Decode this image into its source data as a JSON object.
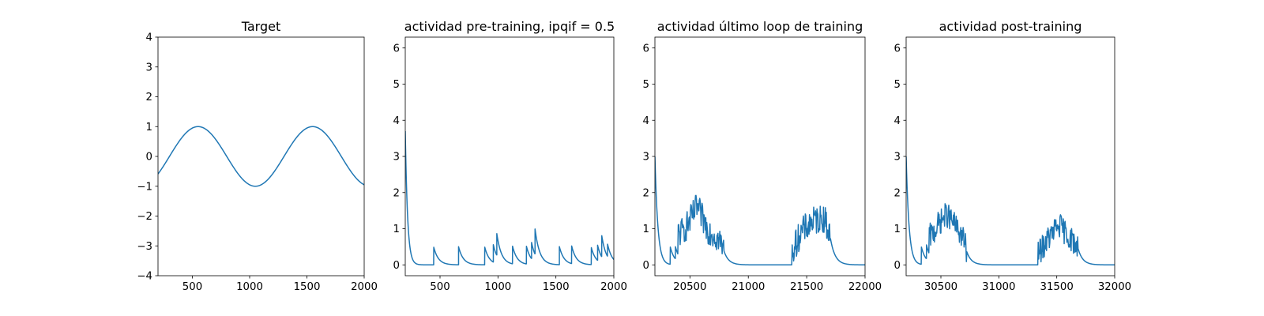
{
  "chart_data": [
    {
      "type": "line",
      "title": "Target",
      "xlabel": "",
      "ylabel": "",
      "xlim": [
        200,
        2000
      ],
      "ylim": [
        -4,
        4
      ],
      "xticks": [
        500,
        1000,
        1500,
        2000
      ],
      "yticks": [
        -4,
        -3,
        -2,
        -1,
        0,
        1,
        2,
        3,
        4
      ],
      "grid": false,
      "color": "#1f77b4",
      "signal": {
        "kind": "sine",
        "amplitude": 1,
        "period": 1000,
        "peak_x": 550
      },
      "series": [
        {
          "x": [
            200,
            300,
            400,
            550,
            700,
            800,
            900,
            1050,
            1200,
            1300,
            1400,
            1550,
            1700,
            1800,
            1900,
            2000
          ],
          "y": [
            -0.59,
            -0.31,
            0.31,
            1.0,
            0.59,
            0.0,
            -0.59,
            -1.0,
            -0.59,
            0.0,
            0.59,
            1.0,
            0.59,
            0.0,
            -0.59,
            -0.95
          ]
        }
      ]
    },
    {
      "type": "line",
      "title": "actividad pre-training, ipqif = 0.5",
      "xlabel": "",
      "ylabel": "",
      "xlim": [
        200,
        2000
      ],
      "ylim": [
        -0.3,
        6.3
      ],
      "xticks": [
        500,
        1000,
        1500,
        2000
      ],
      "yticks": [
        0,
        1,
        2,
        3,
        4,
        5,
        6
      ],
      "grid": false,
      "color": "#1f77b4",
      "signal": {
        "kind": "spikes",
        "start_value": 3.7,
        "start_decay": 20,
        "decay": 40,
        "spikes": [
          [
            445,
            0.5
          ],
          [
            660,
            0.5
          ],
          [
            885,
            0.5
          ],
          [
            960,
            0.48
          ],
          [
            990,
            0.6
          ],
          [
            1125,
            0.5
          ],
          [
            1245,
            0.5
          ],
          [
            1290,
            0.45
          ],
          [
            1320,
            0.7
          ],
          [
            1530,
            0.5
          ],
          [
            1635,
            0.5
          ],
          [
            1805,
            0.48
          ],
          [
            1860,
            0.42
          ],
          [
            1895,
            0.6
          ],
          [
            1945,
            0.35
          ]
        ]
      }
    },
    {
      "type": "line",
      "title": "actividad último loop de training",
      "xlabel": "",
      "ylabel": "",
      "xlim": [
        20200,
        22000
      ],
      "ylim": [
        -0.3,
        6.3
      ],
      "xticks": [
        20500,
        21000,
        21500,
        22000
      ],
      "yticks": [
        0,
        1,
        2,
        3,
        4,
        5,
        6
      ],
      "grid": false,
      "color": "#1f77b4",
      "signal": {
        "kind": "bursts",
        "start_value": 3.0,
        "start_decay": 25,
        "decay": 40,
        "spikes": [
          [
            20330,
            0.5
          ],
          [
            20375,
            0.35
          ]
        ],
        "bursts": [
          {
            "x": [
              20400,
              20500,
              20560,
              20650,
              20750,
              20790
            ],
            "y": [
              0.6,
              1.2,
              1.6,
              1.0,
              0.7,
              0.4
            ],
            "noise": 0.4
          },
          {
            "x": [
              21370,
              21450,
              21550,
              21650,
              21700
            ],
            "y": [
              0.3,
              0.9,
              1.2,
              1.3,
              0.8
            ],
            "noise": 0.4
          }
        ]
      }
    },
    {
      "type": "line",
      "title": "actividad post-training",
      "xlabel": "",
      "ylabel": "",
      "xlim": [
        30200,
        32000
      ],
      "ylim": [
        -0.3,
        6.3
      ],
      "xticks": [
        30500,
        31000,
        31500,
        32000
      ],
      "yticks": [
        0,
        1,
        2,
        3,
        4,
        5,
        6
      ],
      "grid": false,
      "color": "#1f77b4",
      "signal": {
        "kind": "bursts",
        "start_value": 3.0,
        "start_decay": 25,
        "decay": 40,
        "spikes": [
          [
            30330,
            0.5
          ],
          [
            30375,
            0.4
          ]
        ],
        "bursts": [
          {
            "x": [
              30400,
              30480,
              30550,
              30620,
              30700,
              30720
            ],
            "y": [
              0.5,
              1.1,
              1.4,
              1.1,
              0.7,
              0.4
            ],
            "noise": 0.35
          },
          {
            "x": [
              31340,
              31420,
              31520,
              31600,
              31680
            ],
            "y": [
              0.3,
              0.7,
              1.1,
              0.8,
              0.5
            ],
            "noise": 0.35
          }
        ]
      }
    }
  ]
}
